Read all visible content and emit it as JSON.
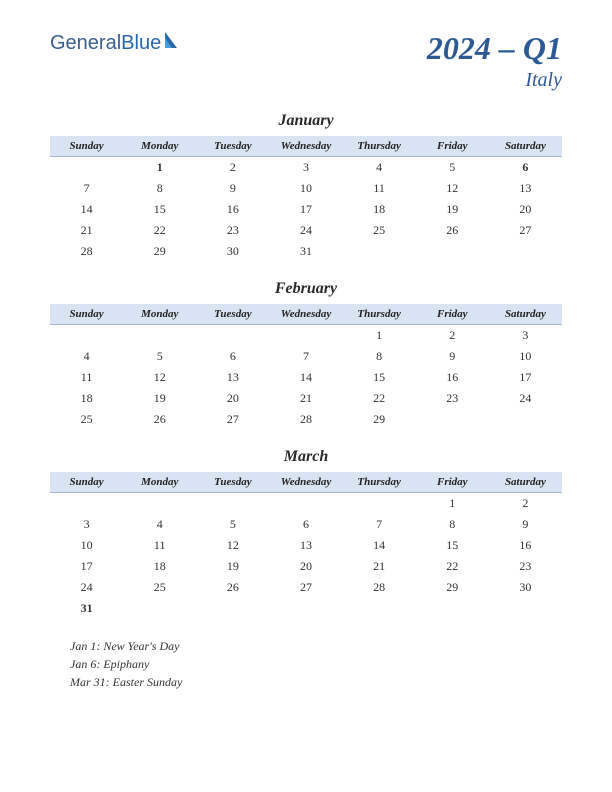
{
  "logo": {
    "part1": "General",
    "part2": "Blue"
  },
  "title": {
    "main": "2024 – Q1",
    "sub": "Italy"
  },
  "days": [
    "Sunday",
    "Monday",
    "Tuesday",
    "Wednesday",
    "Thursday",
    "Friday",
    "Saturday"
  ],
  "colors": {
    "header_bg": "#d9e4f2",
    "brand": "#2d5a95",
    "holiday": "#b02020"
  },
  "months": [
    {
      "name": "January",
      "weeks": [
        [
          "",
          "1",
          "2",
          "3",
          "4",
          "5",
          "6"
        ],
        [
          "7",
          "8",
          "9",
          "10",
          "11",
          "12",
          "13"
        ],
        [
          "14",
          "15",
          "16",
          "17",
          "18",
          "19",
          "20"
        ],
        [
          "21",
          "22",
          "23",
          "24",
          "25",
          "26",
          "27"
        ],
        [
          "28",
          "29",
          "30",
          "31",
          "",
          "",
          ""
        ]
      ],
      "holidays": [
        "1",
        "6"
      ]
    },
    {
      "name": "February",
      "weeks": [
        [
          "",
          "",
          "",
          "",
          "1",
          "2",
          "3"
        ],
        [
          "4",
          "5",
          "6",
          "7",
          "8",
          "9",
          "10"
        ],
        [
          "11",
          "12",
          "13",
          "14",
          "15",
          "16",
          "17"
        ],
        [
          "18",
          "19",
          "20",
          "21",
          "22",
          "23",
          "24"
        ],
        [
          "25",
          "26",
          "27",
          "28",
          "29",
          "",
          ""
        ]
      ],
      "holidays": []
    },
    {
      "name": "March",
      "weeks": [
        [
          "",
          "",
          "",
          "",
          "",
          "1",
          "2"
        ],
        [
          "3",
          "4",
          "5",
          "6",
          "7",
          "8",
          "9"
        ],
        [
          "10",
          "11",
          "12",
          "13",
          "14",
          "15",
          "16"
        ],
        [
          "17",
          "18",
          "19",
          "20",
          "21",
          "22",
          "23"
        ],
        [
          "24",
          "25",
          "26",
          "27",
          "28",
          "29",
          "30"
        ],
        [
          "31",
          "",
          "",
          "",
          "",
          "",
          ""
        ]
      ],
      "holidays": [
        "31"
      ]
    }
  ],
  "holiday_list": [
    "Jan 1: New Year's Day",
    "Jan 6: Epiphany",
    "Mar 31: Easter Sunday"
  ]
}
